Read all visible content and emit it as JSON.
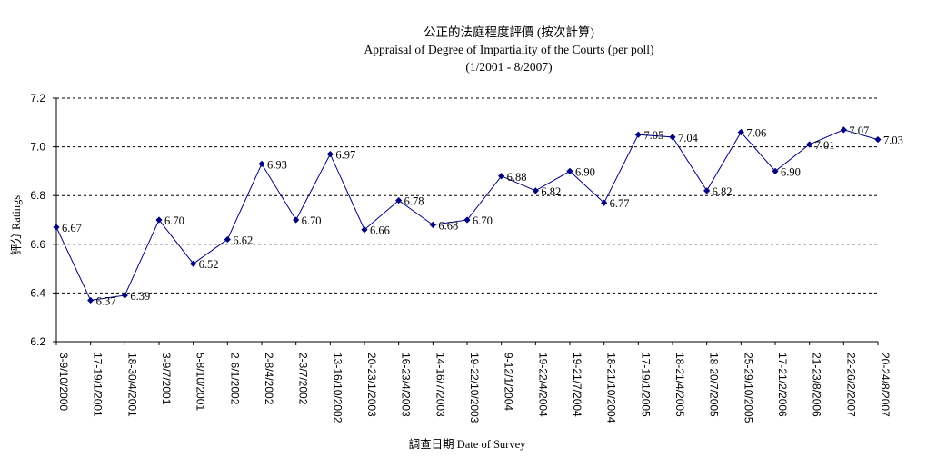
{
  "chart_data": {
    "type": "line",
    "title": "公正的法庭程度評價 (按次計算)",
    "subtitle": "Appraisal of Degree of Impartiality of the Courts (per poll)",
    "period": "(1/2001 - 8/2007)",
    "xlabel": "調查日期 Date of Survey",
    "ylabel": "評分 Ratings",
    "ylim": [
      6.2,
      7.2
    ],
    "yticks": [
      "6.2",
      "6.4",
      "6.6",
      "6.8",
      "7.0",
      "7.2"
    ],
    "grid": "horizontal dashed",
    "legend": "none",
    "colors": {
      "line": "#000080",
      "marker": "#000080",
      "grid": "#000000"
    },
    "categories": [
      "3-9/10/2000",
      "17-19/1/2001",
      "18-30/4/2001",
      "3-9/7/2001",
      "5-8/10/2001",
      "2-6/1/2002",
      "2-8/4/2002",
      "2-3/7/2002",
      "13-16/10/2002",
      "20-23/1/2003",
      "16-23/4/2003",
      "14-16/7/2003",
      "19-22/10/2003",
      "9-12/1/2004",
      "19-22/4/2004",
      "19-21/7/2004",
      "18-21/10/2004",
      "17-19/1/2005",
      "18-21/4/2005",
      "18-20/7/2005",
      "25-29/10/2005",
      "17-21/2/2006",
      "21-23/8/2006",
      "22-26/2/2007",
      "20-24/8/2007"
    ],
    "series": [
      {
        "values": [
          6.67,
          6.37,
          6.39,
          6.7,
          6.52,
          6.62,
          6.93,
          6.7,
          6.97,
          6.66,
          6.78,
          6.68,
          6.7,
          6.88,
          6.82,
          6.9,
          6.77,
          7.05,
          7.04,
          6.82,
          7.06,
          6.9,
          7.01,
          7.07,
          7.03
        ],
        "labels": [
          "6.67",
          "6.37",
          "6.39",
          "6.70",
          "6.52",
          "6.62",
          "6.93",
          "6.70",
          "6.97",
          "6.66",
          "6.78",
          "6.68",
          "6.70",
          "6.88",
          "6.82",
          "6.90",
          "6.77",
          "7.05",
          "7.04",
          "6.82",
          "7.06",
          "6.90",
          "7.01",
          "7.07",
          "7.03"
        ]
      }
    ]
  }
}
